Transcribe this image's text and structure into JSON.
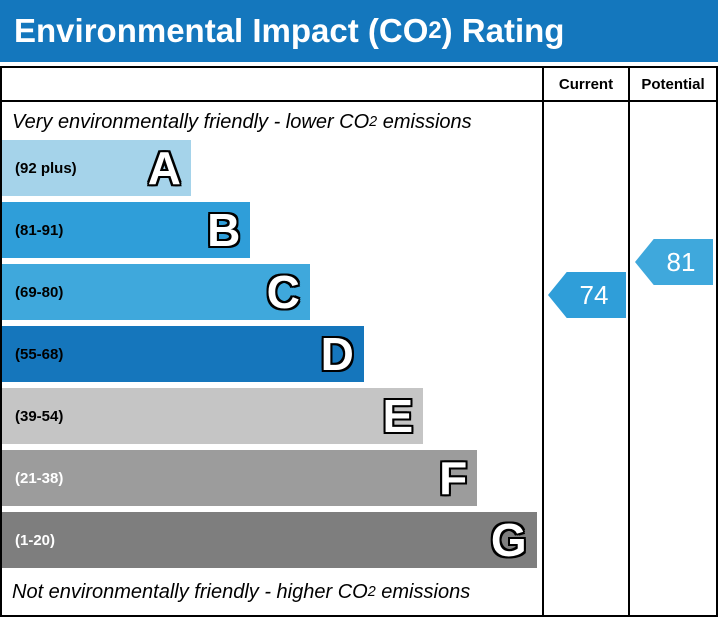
{
  "title": {
    "prefix": "Environmental Impact (CO",
    "sub": "2",
    "suffix": ") Rating"
  },
  "columns": {
    "current": "Current",
    "potential": "Potential"
  },
  "captions": {
    "top_prefix": "Very environmentally friendly - lower CO",
    "top_sub": "2",
    "top_suffix": " emissions",
    "bottom_prefix": "Not environmentally friendly - higher CO",
    "bottom_sub": "2",
    "bottom_suffix": " emissions"
  },
  "bands": [
    {
      "letter": "A",
      "range": "(92 plus)",
      "color": "#a5d3ea",
      "width_pct": 35,
      "label_color": "#000000"
    },
    {
      "letter": "B",
      "range": "(81-91)",
      "color": "#2f9ed9",
      "width_pct": 46,
      "label_color": "#000000"
    },
    {
      "letter": "C",
      "range": "(69-80)",
      "color": "#3fa8dc",
      "width_pct": 57,
      "label_color": "#000000"
    },
    {
      "letter": "D",
      "range": "(55-68)",
      "color": "#1576bc",
      "width_pct": 67,
      "label_color": "#000000"
    },
    {
      "letter": "E",
      "range": "(39-54)",
      "color": "#c5c5c5",
      "width_pct": 78,
      "label_color": "#000000"
    },
    {
      "letter": "F",
      "range": "(21-38)",
      "color": "#9c9c9c",
      "width_pct": 88,
      "label_color": "#ffffff"
    },
    {
      "letter": "G",
      "range": "(1-20)",
      "color": "#7e7e7e",
      "width_pct": 99,
      "label_color": "#ffffff"
    }
  ],
  "ratings": {
    "current": {
      "value": "74",
      "color": "#2f9ed9"
    },
    "potential": {
      "value": "81",
      "color": "#3fa8dc"
    }
  },
  "theme": {
    "title_bg": "#1477bd",
    "title_color": "#ffffff",
    "border_color": "#000000"
  },
  "chart_data": {
    "type": "bar",
    "title": "Environmental Impact (CO2) Rating",
    "categories": [
      "A",
      "B",
      "C",
      "D",
      "E",
      "F",
      "G"
    ],
    "band_ranges": [
      "92 plus",
      "81-91",
      "69-80",
      "55-68",
      "39-54",
      "21-38",
      "1-20"
    ],
    "values": [
      35,
      46,
      57,
      67,
      78,
      88,
      99
    ],
    "value_unit": "relative band width percent",
    "annotations": [
      {
        "label": "Current",
        "value": 74,
        "band": "C"
      },
      {
        "label": "Potential",
        "value": 81,
        "band": "B"
      }
    ],
    "legend_position": "none",
    "grid": false
  }
}
